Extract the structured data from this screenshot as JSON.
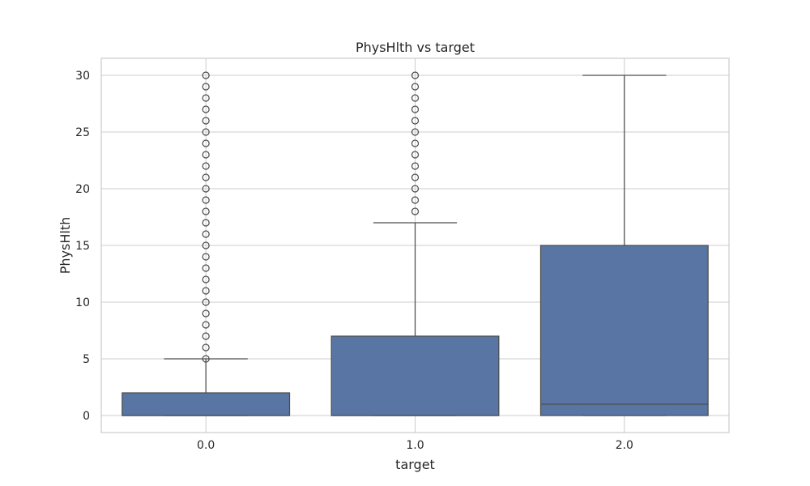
{
  "chart_data": {
    "type": "box",
    "title": "PhysHlth vs target",
    "xlabel": "target",
    "ylabel": "PhysHlth",
    "categories": [
      "0.0",
      "1.0",
      "2.0"
    ],
    "ylim": [
      -1.5,
      31.5
    ],
    "yticks": [
      0,
      5,
      10,
      15,
      20,
      25,
      30
    ],
    "ytick_labels": [
      "0",
      "5",
      "10",
      "15",
      "20",
      "25",
      "30"
    ],
    "grid": true,
    "box_color": "#5875a4",
    "line_color": "#4d4d4d",
    "boxes": [
      {
        "category": "0.0",
        "whisker_low": 0,
        "q1": 0,
        "median": 0,
        "q3": 2,
        "whisker_high": 5,
        "outliers": [
          5,
          6,
          7,
          8,
          9,
          10,
          11,
          12,
          13,
          14,
          15,
          16,
          17,
          18,
          19,
          20,
          21,
          22,
          23,
          24,
          25,
          26,
          27,
          28,
          29,
          30
        ]
      },
      {
        "category": "1.0",
        "whisker_low": 0,
        "q1": 0,
        "median": 0,
        "q3": 7,
        "whisker_high": 17,
        "outliers": [
          18,
          19,
          20,
          21,
          22,
          23,
          24,
          25,
          26,
          27,
          28,
          29,
          30
        ]
      },
      {
        "category": "2.0",
        "whisker_low": 0,
        "q1": 0,
        "median": 1,
        "q3": 15,
        "whisker_high": 30,
        "outliers": []
      }
    ]
  }
}
